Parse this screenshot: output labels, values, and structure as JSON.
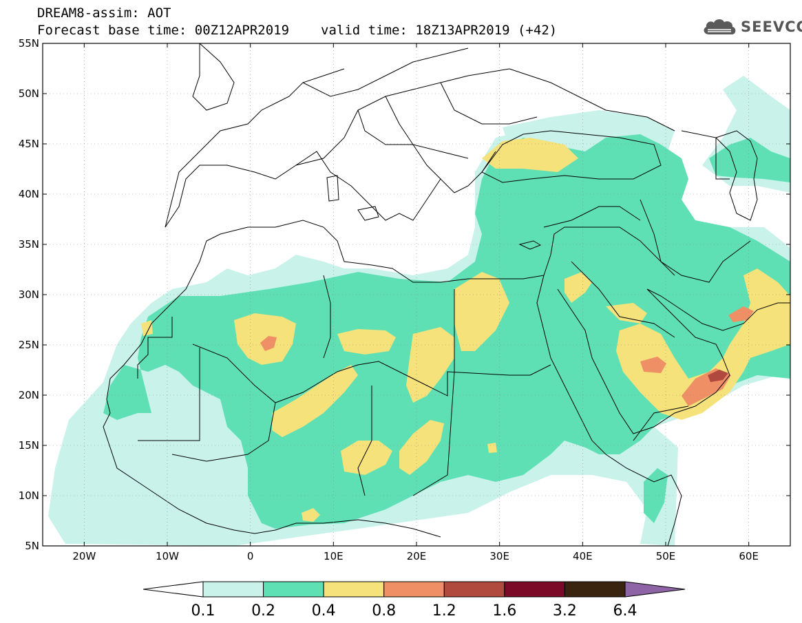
{
  "header": {
    "title_line1": "DREAM8-assim: AOT",
    "base_time": "Forecast base time: 00Z12APR2019",
    "valid_time": "valid time: 18Z13APR2019 (+42)",
    "logo_text": "SEEVCCC",
    "logo_icon": "cloud-icon"
  },
  "map": {
    "lon_range": [
      -25,
      65
    ],
    "lat_range": [
      5,
      55
    ],
    "lat_ticks": [
      {
        "value": 55,
        "label": "55N"
      },
      {
        "value": 50,
        "label": "50N"
      },
      {
        "value": 45,
        "label": "45N"
      },
      {
        "value": 40,
        "label": "40N"
      },
      {
        "value": 35,
        "label": "35N"
      },
      {
        "value": 30,
        "label": "30N"
      },
      {
        "value": 25,
        "label": "25N"
      },
      {
        "value": 20,
        "label": "20N"
      },
      {
        "value": 15,
        "label": "15N"
      },
      {
        "value": 10,
        "label": "10N"
      },
      {
        "value": 5,
        "label": "5N"
      }
    ],
    "lon_ticks": [
      {
        "value": -20,
        "label": "20W"
      },
      {
        "value": -10,
        "label": "10W"
      },
      {
        "value": 0,
        "label": "0"
      },
      {
        "value": 10,
        "label": "10E"
      },
      {
        "value": 20,
        "label": "20E"
      },
      {
        "value": 30,
        "label": "30E"
      },
      {
        "value": 40,
        "label": "40E"
      },
      {
        "value": 50,
        "label": "50E"
      },
      {
        "value": 60,
        "label": "60E"
      }
    ]
  },
  "colorbar": {
    "levels": [
      "0.1",
      "0.2",
      "0.4",
      "0.8",
      "1.2",
      "1.6",
      "3.2",
      "6.4"
    ],
    "colors": [
      "#ffffff",
      "#c8f2ea",
      "#5ee0b4",
      "#f5e27a",
      "#ee8f66",
      "#b04a3e",
      "#7a0a28",
      "#3a2410",
      "#8e64a6"
    ]
  }
}
